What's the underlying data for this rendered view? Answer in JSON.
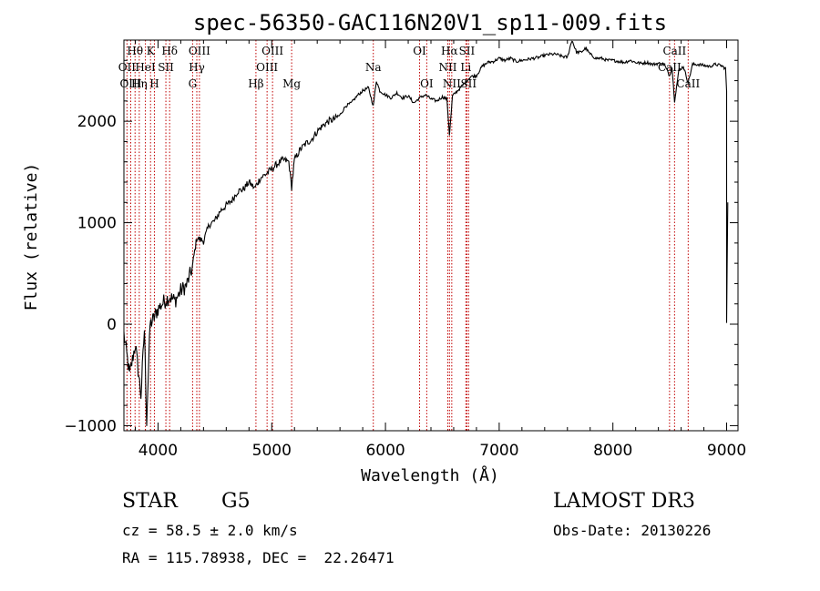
{
  "chart_data": {
    "type": "line",
    "title": "spec-56350-GAC116N20V1_sp11-009.fits",
    "xlabel": "Wavelength (Å)",
    "ylabel": "Flux (relative)",
    "xlim": [
      3700,
      9100
    ],
    "ylim": [
      -1050,
      2800
    ],
    "xticks": [
      4000,
      5000,
      6000,
      7000,
      8000,
      9000
    ],
    "yticks": [
      -1000,
      0,
      1000,
      2000
    ],
    "series": [
      {
        "name": "flux",
        "points": [
          [
            3700,
            -100
          ],
          [
            3750,
            -500
          ],
          [
            3800,
            -200
          ],
          [
            3850,
            -700
          ],
          [
            3880,
            -50
          ],
          [
            3900,
            -950
          ],
          [
            3930,
            0
          ],
          [
            3960,
            50
          ],
          [
            4000,
            150
          ],
          [
            4050,
            220
          ],
          [
            4100,
            270
          ],
          [
            4150,
            230
          ],
          [
            4200,
            330
          ],
          [
            4250,
            380
          ],
          [
            4300,
            550
          ],
          [
            4340,
            850
          ],
          [
            4400,
            820
          ],
          [
            4450,
            980
          ],
          [
            4500,
            1020
          ],
          [
            4550,
            1120
          ],
          [
            4600,
            1170
          ],
          [
            4650,
            1220
          ],
          [
            4700,
            1310
          ],
          [
            4750,
            1330
          ],
          [
            4800,
            1400
          ],
          [
            4850,
            1340
          ],
          [
            4900,
            1440
          ],
          [
            4950,
            1480
          ],
          [
            5000,
            1530
          ],
          [
            5050,
            1580
          ],
          [
            5100,
            1620
          ],
          [
            5150,
            1600
          ],
          [
            5175,
            1350
          ],
          [
            5200,
            1620
          ],
          [
            5250,
            1720
          ],
          [
            5300,
            1780
          ],
          [
            5350,
            1820
          ],
          [
            5400,
            1900
          ],
          [
            5450,
            1960
          ],
          [
            5500,
            2000
          ],
          [
            5550,
            2020
          ],
          [
            5600,
            2060
          ],
          [
            5650,
            2150
          ],
          [
            5700,
            2180
          ],
          [
            5750,
            2250
          ],
          [
            5800,
            2300
          ],
          [
            5850,
            2330
          ],
          [
            5893,
            2150
          ],
          [
            5920,
            2400
          ],
          [
            5950,
            2300
          ],
          [
            6000,
            2260
          ],
          [
            6050,
            2230
          ],
          [
            6100,
            2280
          ],
          [
            6150,
            2230
          ],
          [
            6200,
            2250
          ],
          [
            6250,
            2180
          ],
          [
            6300,
            2230
          ],
          [
            6350,
            2260
          ],
          [
            6400,
            2220
          ],
          [
            6450,
            2200
          ],
          [
            6500,
            2240
          ],
          [
            6540,
            2220
          ],
          [
            6563,
            1870
          ],
          [
            6590,
            2250
          ],
          [
            6650,
            2320
          ],
          [
            6700,
            2380
          ],
          [
            6750,
            2440
          ],
          [
            6800,
            2450
          ],
          [
            6850,
            2540
          ],
          [
            6900,
            2580
          ],
          [
            6950,
            2590
          ],
          [
            7000,
            2620
          ],
          [
            7050,
            2600
          ],
          [
            7100,
            2620
          ],
          [
            7150,
            2590
          ],
          [
            7200,
            2600
          ],
          [
            7250,
            2610
          ],
          [
            7300,
            2620
          ],
          [
            7350,
            2630
          ],
          [
            7400,
            2650
          ],
          [
            7450,
            2660
          ],
          [
            7500,
            2660
          ],
          [
            7550,
            2640
          ],
          [
            7600,
            2630
          ],
          [
            7640,
            2800
          ],
          [
            7680,
            2680
          ],
          [
            7720,
            2680
          ],
          [
            7760,
            2720
          ],
          [
            7800,
            2660
          ],
          [
            7850,
            2620
          ],
          [
            7900,
            2620
          ],
          [
            7950,
            2600
          ],
          [
            8000,
            2600
          ],
          [
            8050,
            2590
          ],
          [
            8100,
            2580
          ],
          [
            8150,
            2600
          ],
          [
            8200,
            2580
          ],
          [
            8250,
            2570
          ],
          [
            8300,
            2580
          ],
          [
            8350,
            2560
          ],
          [
            8400,
            2570
          ],
          [
            8450,
            2560
          ],
          [
            8498,
            2450
          ],
          [
            8520,
            2530
          ],
          [
            8542,
            2200
          ],
          [
            8580,
            2500
          ],
          [
            8620,
            2540
          ],
          [
            8662,
            2380
          ],
          [
            8700,
            2560
          ],
          [
            8750,
            2560
          ],
          [
            8800,
            2550
          ],
          [
            8850,
            2540
          ],
          [
            8900,
            2560
          ],
          [
            8950,
            2550
          ],
          [
            8990,
            2520
          ],
          [
            9000,
            2300
          ],
          [
            9000,
            0
          ],
          [
            9010,
            1200
          ]
        ]
      }
    ],
    "lines": [
      {
        "name": "Hθ",
        "x": 3798,
        "row": 1
      },
      {
        "name": "OII",
        "x": 3727,
        "row": 2
      },
      {
        "name": "OIII",
        "x": 3760,
        "row": 3
      },
      {
        "name": "Hη",
        "x": 3835,
        "row": 3
      },
      {
        "name": "HeI",
        "x": 3889,
        "row": 2
      },
      {
        "name": "K",
        "x": 3934,
        "row": 1
      },
      {
        "name": "H",
        "x": 3968,
        "row": 3
      },
      {
        "name": "SII",
        "x": 4069,
        "row": 2
      },
      {
        "name": "Hδ",
        "x": 4102,
        "row": 1
      },
      {
        "name": "OIII",
        "x": 4364,
        "row": 1
      },
      {
        "name": "Hγ",
        "x": 4341,
        "row": 2
      },
      {
        "name": "G",
        "x": 4304,
        "row": 3
      },
      {
        "name": "Hβ",
        "x": 4861,
        "row": 3
      },
      {
        "name": "OIII",
        "x": 4959,
        "row": 2
      },
      {
        "name": "OIII",
        "x": 5007,
        "row": 1
      },
      {
        "name": "Mg",
        "x": 5175,
        "row": 3
      },
      {
        "name": "Na",
        "x": 5893,
        "row": 2
      },
      {
        "name": "OI",
        "x": 6300,
        "row": 1
      },
      {
        "name": "OI",
        "x": 6363,
        "row": 3
      },
      {
        "name": "Hα",
        "x": 6563,
        "row": 1
      },
      {
        "name": "NII",
        "x": 6548,
        "row": 2
      },
      {
        "name": "NII",
        "x": 6583,
        "row": 3
      },
      {
        "name": "SII",
        "x": 6716,
        "row": 1
      },
      {
        "name": "Li",
        "x": 6707,
        "row": 2
      },
      {
        "name": "SII",
        "x": 6731,
        "row": 3
      },
      {
        "name": "CaII",
        "x": 8542,
        "row": 1
      },
      {
        "name": "CaII",
        "x": 8498,
        "row": 2
      },
      {
        "name": "CaII",
        "x": 8662,
        "row": 3
      }
    ]
  },
  "info": {
    "object_class": "STAR",
    "subclass": "G5",
    "survey": "LAMOST DR3",
    "redshift": "cz = 58.5 ± 2.0 km/s",
    "obs_date": "Obs-Date: 20130226",
    "coords": "RA = 115.78938, DEC =  22.26471"
  },
  "colors": {
    "line_marker": "#c00000",
    "spectrum": "#000000"
  }
}
